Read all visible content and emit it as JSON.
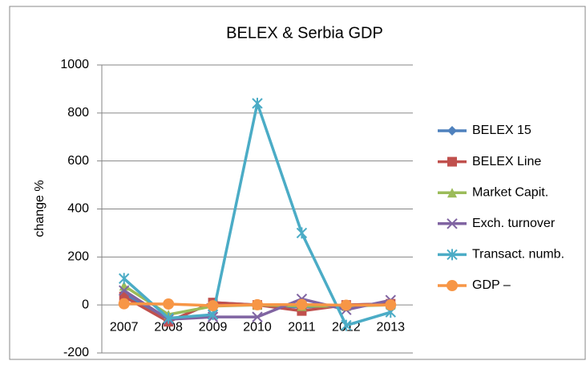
{
  "chart_data": {
    "type": "line",
    "title": "BELEX & Serbia GDP",
    "y_label": "change   %",
    "categories": [
      "2007",
      "2008",
      "2009",
      "2010",
      "2011",
      "2012",
      "2013"
    ],
    "series": [
      {
        "name": "BELEX 15",
        "color": "#4f81bd",
        "marker": "diamond",
        "values": [
          50,
          -70,
          10,
          0,
          -10,
          0,
          5
        ]
      },
      {
        "name": "BELEX Line",
        "color": "#c0504d",
        "marker": "square",
        "values": [
          35,
          -70,
          10,
          0,
          -25,
          0,
          5
        ]
      },
      {
        "name": "Market Capit.",
        "color": "#9bbb59",
        "marker": "triangle",
        "values": [
          80,
          -40,
          -5,
          0,
          -5,
          -5,
          0
        ]
      },
      {
        "name": "Exch. turnover",
        "color": "#8064a2",
        "marker": "x",
        "values": [
          60,
          -60,
          -50,
          -50,
          25,
          -20,
          20
        ]
      },
      {
        "name": "Transact. numb.",
        "color": "#4bacc6",
        "marker": "star",
        "values": [
          110,
          -55,
          -40,
          840,
          300,
          -85,
          -30
        ]
      },
      {
        "name": "GDP –",
        "color": "#f79646",
        "marker": "circle",
        "values": [
          5,
          4,
          -3,
          1,
          2,
          -1,
          0
        ]
      }
    ],
    "ylim": [
      -200,
      1000
    ],
    "yticks": [
      -200,
      0,
      200,
      400,
      600,
      800,
      1000
    ],
    "grid": true,
    "legend": "right"
  }
}
